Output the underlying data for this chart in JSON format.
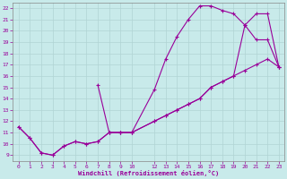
{
  "xlabel": "Windchill (Refroidissement éolien,°C)",
  "xlim": [
    -0.5,
    23.5
  ],
  "ylim": [
    8.5,
    22.5
  ],
  "xticks": [
    0,
    1,
    2,
    3,
    4,
    5,
    6,
    7,
    8,
    9,
    10,
    12,
    13,
    14,
    15,
    16,
    17,
    18,
    19,
    20,
    21,
    22,
    23
  ],
  "yticks": [
    9,
    10,
    11,
    12,
    13,
    14,
    15,
    16,
    17,
    18,
    19,
    20,
    21,
    22
  ],
  "bg_color": "#c8eaea",
  "line_color": "#990099",
  "curve1_x": [
    0,
    1,
    2,
    3,
    4,
    5,
    6,
    7,
    8,
    9,
    10,
    12,
    13,
    14,
    15,
    16,
    17,
    18,
    19,
    20,
    21,
    22,
    23
  ],
  "curve1_y": [
    11.5,
    10.5,
    9.2,
    9.0,
    9.8,
    10.2,
    10.0,
    10.2,
    11.0,
    11.0,
    11.0,
    14.8,
    17.5,
    19.5,
    21.0,
    22.2,
    22.2,
    21.8,
    21.5,
    20.5,
    19.2,
    19.2,
    16.8
  ],
  "curve2_x": [
    0,
    1,
    2,
    3,
    4,
    5,
    6,
    7,
    8,
    9,
    10,
    12,
    13,
    14,
    15,
    16,
    17,
    18,
    19,
    20,
    21,
    22,
    23
  ],
  "curve2_y": [
    11.5,
    10.5,
    9.2,
    9.0,
    9.8,
    10.2,
    10.0,
    10.2,
    11.0,
    11.0,
    11.0,
    12.0,
    12.5,
    13.0,
    13.5,
    14.0,
    15.0,
    15.5,
    16.0,
    16.5,
    17.0,
    17.5,
    16.8
  ],
  "curve3_x": [
    7,
    8,
    9,
    10,
    12,
    13,
    14,
    15,
    16,
    17,
    18,
    19,
    20,
    21,
    22,
    23
  ],
  "curve3_y": [
    15.2,
    11.0,
    11.0,
    11.0,
    12.0,
    12.5,
    13.0,
    13.5,
    14.0,
    15.0,
    15.5,
    16.0,
    20.5,
    21.5,
    21.5,
    16.8
  ]
}
